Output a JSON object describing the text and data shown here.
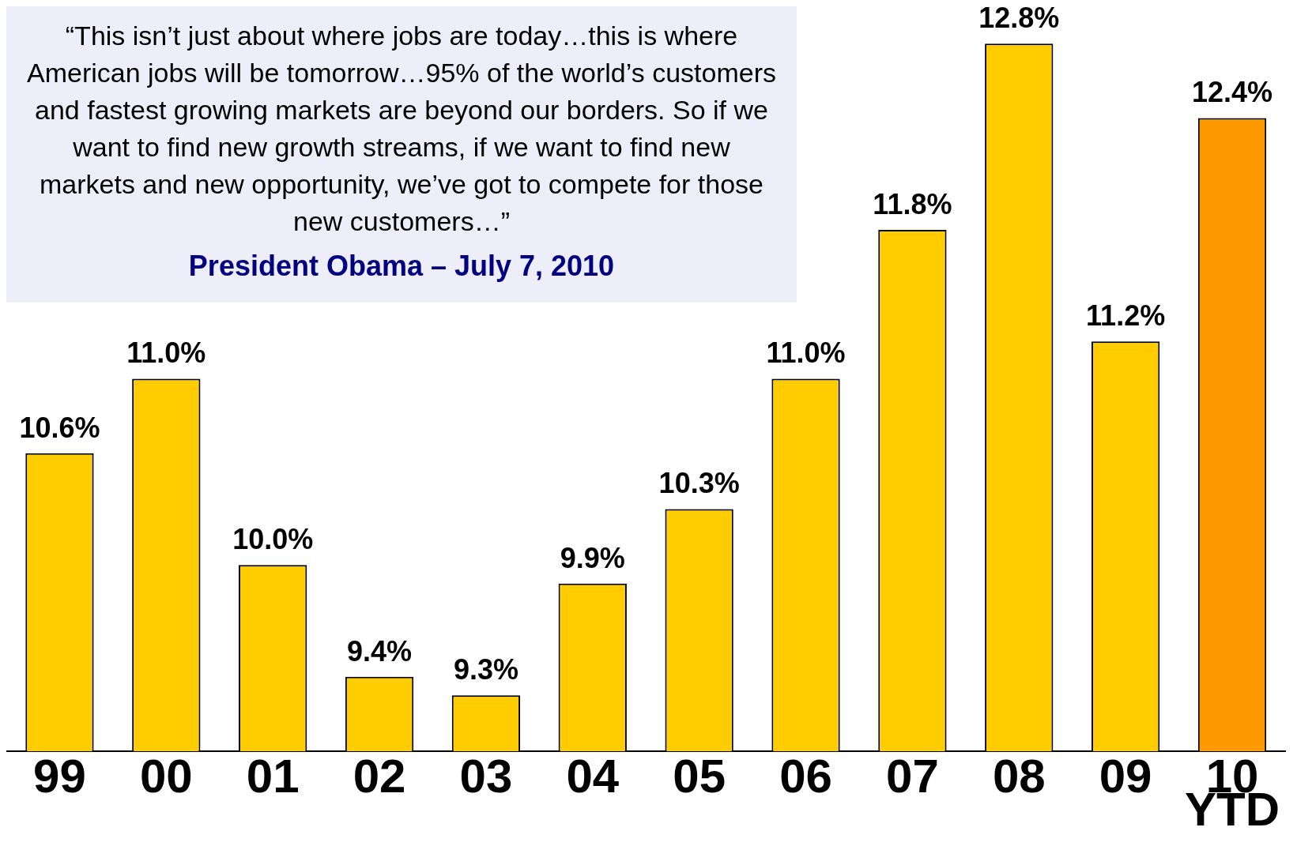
{
  "chart_data": {
    "type": "bar",
    "categories": [
      "99",
      "00",
      "01",
      "02",
      "03",
      "04",
      "05",
      "06",
      "07",
      "08",
      "09",
      "10 YTD"
    ],
    "values": [
      10.6,
      11.0,
      10.0,
      9.4,
      9.3,
      9.9,
      10.3,
      11.0,
      11.8,
      12.8,
      11.2,
      12.4
    ],
    "colors": [
      "#ffcc00",
      "#ffcc00",
      "#ffcc00",
      "#ffcc00",
      "#ffcc00",
      "#ffcc00",
      "#ffcc00",
      "#ffcc00",
      "#ffcc00",
      "#ffcc00",
      "#ffcc00",
      "#ff9900"
    ],
    "ylim": [
      9,
      13
    ],
    "data_labels": true,
    "value_labels": [
      "10.6%",
      "11.0%",
      "10.0%",
      "9.4%",
      "9.3%",
      "9.9%",
      "10.3%",
      "11.0%",
      "11.8%",
      "12.8%",
      "11.2%",
      "12.4%"
    ],
    "tick_labels": "x",
    "grid": false,
    "legend": false,
    "annotations": [
      "“This isn’t just about where jobs are today…this is where American jobs will be tomorrow…95% of the world’s customers and fastest growing markets are beyond our borders.   So if we want to find new growth streams, if we want to find new markets and new opportunity, we’ve got to compete for those new customers…”",
      "President Obama – July 7, 2010"
    ]
  }
}
